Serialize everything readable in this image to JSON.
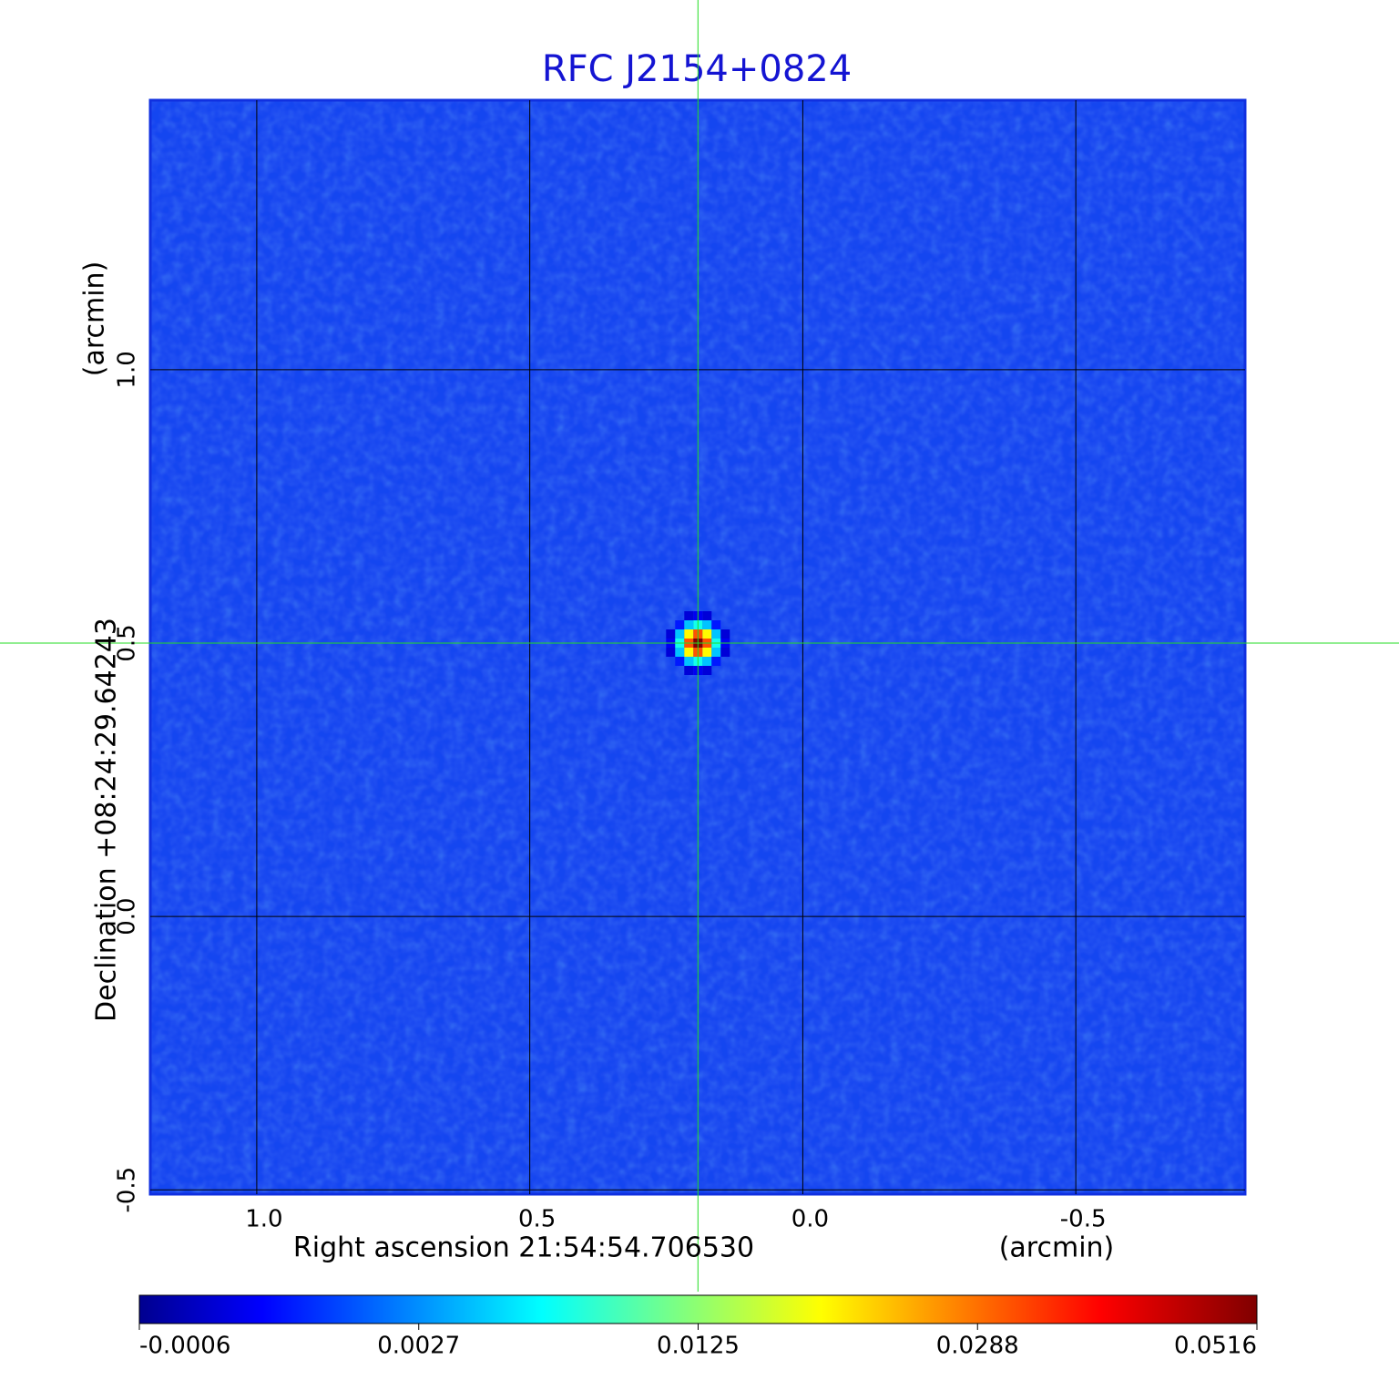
{
  "chart_data": {
    "type": "image",
    "title": "RFC J2154+0824",
    "x_label": "Right ascension  21:54:54.706530",
    "x_unit": "(arcmin)",
    "y_label": "Declination  +08:24:29.64243",
    "y_unit": "(arcmin)",
    "xlim": [
      1.195,
      -0.81
    ],
    "ylim": [
      -0.508,
      1.493
    ],
    "xticks": [
      {
        "value": 1,
        "label": "1.0"
      },
      0.5,
      {
        "value": 0,
        "label": "0.0"
      },
      -0.5
    ],
    "yticks": [
      -0.5,
      {
        "value": 0,
        "label": "0.0"
      },
      0.5,
      {
        "value": 1,
        "label": "1.0"
      }
    ],
    "grid": true,
    "colormap": "jet",
    "colorbar_ticks": [
      -0.0006,
      0.0027,
      0.0125,
      0.0288,
      0.0516
    ],
    "peak": {
      "x": 0.192,
      "y": 0.5,
      "value": 0.0516
    },
    "crosshair_color": "#22dd22"
  }
}
